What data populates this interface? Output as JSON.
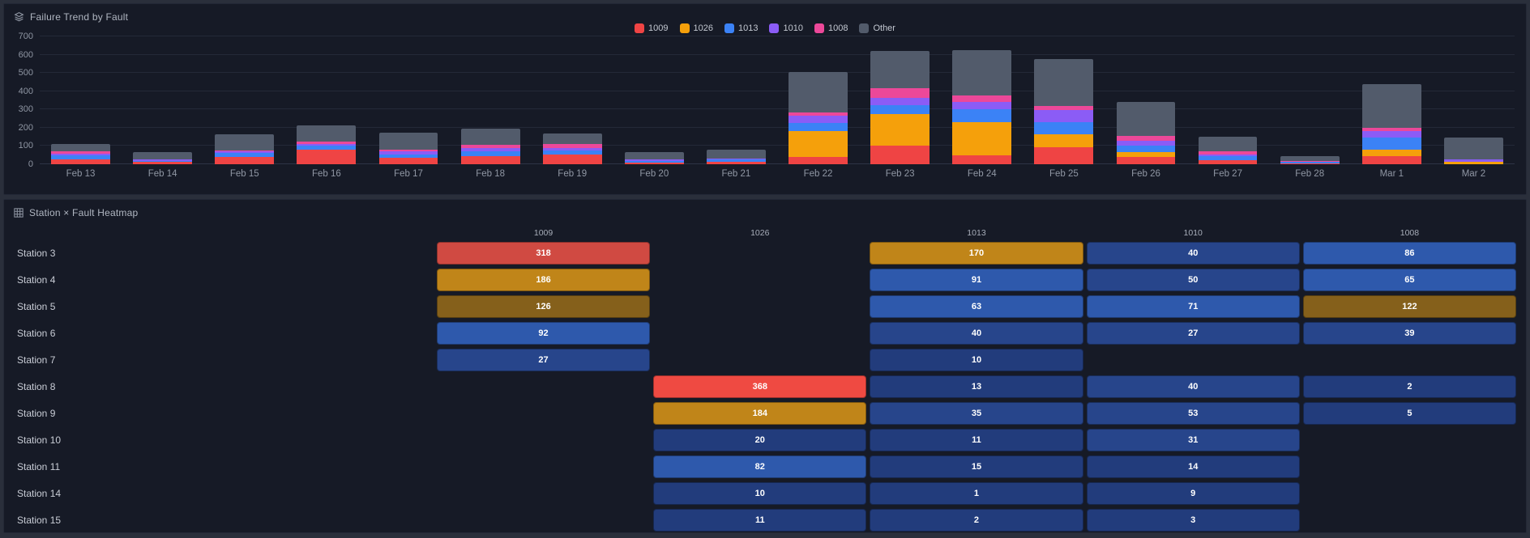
{
  "panels": {
    "trend": {
      "title": "Failure Trend by Fault"
    },
    "heatmap": {
      "title": "Station × Fault Heatmap"
    }
  },
  "colors": {
    "panel_bg": "#161a26",
    "grid": "#242938",
    "axis_text": "#8f96a3"
  },
  "chart_data": [
    {
      "type": "bar",
      "stacked": true,
      "title": "Failure Trend by Fault",
      "xlabel": "",
      "ylabel": "",
      "ylim": [
        0,
        700
      ],
      "yticks": [
        0,
        100,
        200,
        300,
        400,
        500,
        600,
        700
      ],
      "grid": true,
      "legend_position": "top-center",
      "categories": [
        "Feb 13",
        "Feb 14",
        "Feb 15",
        "Feb 16",
        "Feb 17",
        "Feb 18",
        "Feb 19",
        "Feb 20",
        "Feb 21",
        "Feb 22",
        "Feb 23",
        "Feb 24",
        "Feb 25",
        "Feb 26",
        "Feb 27",
        "Feb 28",
        "Mar 1",
        "Mar 2"
      ],
      "series": [
        {
          "name": "1009",
          "color": "#ef4444",
          "values": [
            28,
            12,
            42,
            80,
            35,
            45,
            55,
            8,
            15,
            40,
            100,
            50,
            95,
            40,
            22,
            5,
            45,
            0
          ]
        },
        {
          "name": "1026",
          "color": "#f5a00b",
          "values": [
            0,
            0,
            0,
            0,
            0,
            0,
            0,
            0,
            0,
            140,
            175,
            180,
            70,
            25,
            0,
            0,
            35,
            15
          ]
        },
        {
          "name": "1013",
          "color": "#3b82f6",
          "values": [
            20,
            8,
            20,
            20,
            20,
            27,
            20,
            12,
            10,
            45,
            50,
            70,
            65,
            38,
            22,
            10,
            65,
            0
          ]
        },
        {
          "name": "1010",
          "color": "#8b5cf6",
          "values": [
            10,
            5,
            8,
            10,
            15,
            15,
            15,
            5,
            5,
            40,
            40,
            40,
            65,
            27,
            8,
            0,
            35,
            10
          ]
        },
        {
          "name": "1008",
          "color": "#ec4899",
          "values": [
            15,
            0,
            6,
            15,
            10,
            18,
            22,
            0,
            3,
            20,
            50,
            35,
            25,
            27,
            20,
            5,
            20,
            0
          ]
        },
        {
          "name": "Other",
          "color": "#525b6b",
          "values": [
            37,
            42,
            90,
            90,
            95,
            92,
            58,
            40,
            48,
            220,
            205,
            250,
            255,
            183,
            78,
            25,
            240,
            120
          ]
        }
      ]
    },
    {
      "type": "heatmap",
      "title": "Station × Fault Heatmap",
      "columns": [
        "1009",
        "1026",
        "1013",
        "1010",
        "1008"
      ],
      "rows": [
        "Station 3",
        "Station 4",
        "Station 5",
        "Station 6",
        "Station 7",
        "Station 8",
        "Station 9",
        "Station 10",
        "Station 11",
        "Station 14",
        "Station 15"
      ],
      "values": [
        [
          318,
          null,
          170,
          40,
          86
        ],
        [
          186,
          null,
          91,
          50,
          65
        ],
        [
          126,
          null,
          63,
          71,
          122
        ],
        [
          92,
          null,
          40,
          27,
          39
        ],
        [
          27,
          null,
          10,
          null,
          null
        ],
        [
          null,
          368,
          13,
          40,
          2
        ],
        [
          null,
          184,
          35,
          53,
          5
        ],
        [
          null,
          20,
          11,
          31,
          null
        ],
        [
          null,
          82,
          15,
          14,
          null
        ],
        [
          null,
          10,
          1,
          9,
          null
        ],
        [
          null,
          11,
          2,
          3,
          null
        ]
      ],
      "color_ramp": [
        {
          "min": 350,
          "color": "#ef4a42"
        },
        {
          "min": 250,
          "color": "#d04a42"
        },
        {
          "min": 160,
          "color": "#c08519"
        },
        {
          "min": 100,
          "color": "#85601b"
        },
        {
          "min": 60,
          "color": "#2e59ac"
        },
        {
          "min": 25,
          "color": "#27458b"
        },
        {
          "min": 0,
          "color": "#223c7c"
        }
      ]
    }
  ]
}
